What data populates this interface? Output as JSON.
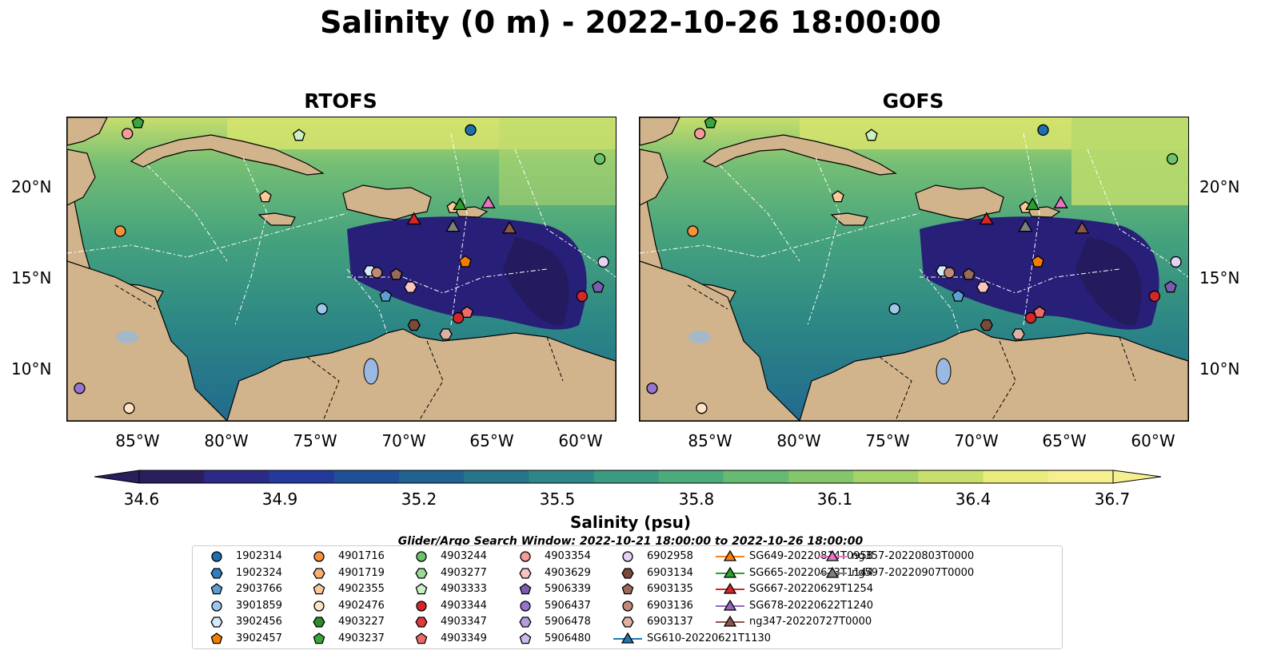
{
  "title": "Salinity (0 m) - 2022-10-26 18:00:00",
  "panels": [
    {
      "name": "RTOFS"
    },
    {
      "name": "GOFS"
    }
  ],
  "y_ticks": [
    "20°N",
    "15°N",
    "10°N"
  ],
  "x_ticks": [
    "85°W",
    "80°W",
    "75°W",
    "70°W",
    "65°W",
    "60°W"
  ],
  "colorbar": {
    "label": "Salinity (psu)",
    "ticks": [
      "34.6",
      "34.9",
      "35.2",
      "35.5",
      "35.8",
      "36.1",
      "36.4",
      "36.7"
    ],
    "min": 34.6,
    "max": 36.7,
    "colors": [
      "#2a1e5c",
      "#2b2a86",
      "#233a9c",
      "#1f4f96",
      "#206290",
      "#26758b",
      "#2e8787",
      "#3a9a82",
      "#4dab7b",
      "#66ba73",
      "#84c76b",
      "#a6d368",
      "#c8df6c",
      "#eaec7e",
      "#f5ef90"
    ]
  },
  "search_window": "Glider/Argo Search Window: 2022-10-21 18:00:00 to 2022-10-26 18:00:00",
  "legend": [
    {
      "label": "1902314",
      "marker": "circle",
      "color": "#1f6fae"
    },
    {
      "label": "1902324",
      "marker": "hexagon",
      "color": "#2f7fc0"
    },
    {
      "label": "2903766",
      "marker": "pentagon",
      "color": "#5b9fd4"
    },
    {
      "label": "3901859",
      "marker": "circle",
      "color": "#9ec8ea"
    },
    {
      "label": "3902456",
      "marker": "hexagon",
      "color": "#d6eaf8"
    },
    {
      "label": "3902457",
      "marker": "pentagon",
      "color": "#f57c00"
    },
    {
      "label": "4901716",
      "marker": "circle",
      "color": "#f5923a"
    },
    {
      "label": "4901719",
      "marker": "hexagon",
      "color": "#f8b074"
    },
    {
      "label": "4902355",
      "marker": "pentagon",
      "color": "#fac99a"
    },
    {
      "label": "4902476",
      "marker": "circle",
      "color": "#fde2c4"
    },
    {
      "label": "4903227",
      "marker": "hexagon",
      "color": "#2e8b2e"
    },
    {
      "label": "4903237",
      "marker": "pentagon",
      "color": "#3aa53a"
    },
    {
      "label": "4903244",
      "marker": "circle",
      "color": "#6cc36c"
    },
    {
      "label": "4903277",
      "marker": "hexagon",
      "color": "#9ad99a"
    },
    {
      "label": "4903333",
      "marker": "pentagon",
      "color": "#caf0c4"
    },
    {
      "label": "4903344",
      "marker": "circle",
      "color": "#d62728"
    },
    {
      "label": "4903347",
      "marker": "hexagon",
      "color": "#e0393a"
    },
    {
      "label": "4903349",
      "marker": "pentagon",
      "color": "#ec6a6a"
    },
    {
      "label": "4903354",
      "marker": "circle",
      "color": "#f49a9a"
    },
    {
      "label": "4903629",
      "marker": "hexagon",
      "color": "#f9c4c4"
    },
    {
      "label": "5906339",
      "marker": "pentagon",
      "color": "#7b5cb0"
    },
    {
      "label": "5906437",
      "marker": "circle",
      "color": "#9575cd"
    },
    {
      "label": "5906478",
      "marker": "hexagon",
      "color": "#b39ddb"
    },
    {
      "label": "5906480",
      "marker": "pentagon",
      "color": "#cdb8ec"
    },
    {
      "label": "6902958",
      "marker": "circle",
      "color": "#e3d3f7"
    },
    {
      "label": "6903134",
      "marker": "hexagon",
      "color": "#7a4a3a"
    },
    {
      "label": "6903135",
      "marker": "pentagon",
      "color": "#9a6a58"
    },
    {
      "label": "6903136",
      "marker": "circle",
      "color": "#c08a78"
    },
    {
      "label": "6903137",
      "marker": "hexagon",
      "color": "#ddb2a2"
    },
    {
      "label": "SG610-20220621T1130",
      "marker": "triangle",
      "color": "#1f77b4"
    },
    {
      "label": "SG649-20220814T0958",
      "marker": "triangle",
      "color": "#ff7f0e"
    },
    {
      "label": "SG665-20220623T1144",
      "marker": "triangle",
      "color": "#2ca02c"
    },
    {
      "label": "SG667-20220629T1254",
      "marker": "triangle",
      "color": "#d62728"
    },
    {
      "label": "SG678-20220622T1240",
      "marker": "triangle",
      "color": "#9467bd"
    },
    {
      "label": "ng347-20220727T0000",
      "marker": "triangle",
      "color": "#8c564b"
    },
    {
      "label": "ng357-20220803T0000",
      "marker": "triangle",
      "color": "#e377c2"
    },
    {
      "label": "ng597-20220907T0000",
      "marker": "triangle",
      "color": "#7f7f7f"
    }
  ],
  "observations": [
    {
      "id": "1902314",
      "lon": -66.2,
      "lat": 23.1
    },
    {
      "id": "4903244",
      "lon": -58.9,
      "lat": 21.5
    },
    {
      "id": "4903237",
      "lon": -85.0,
      "lat": 23.5
    },
    {
      "id": "4903354",
      "lon": -85.6,
      "lat": 22.9
    },
    {
      "id": "4903333",
      "lon": -75.9,
      "lat": 22.8
    },
    {
      "id": "4902355",
      "lon": -77.8,
      "lat": 19.4
    },
    {
      "id": "4901716",
      "lon": -86.0,
      "lat": 17.5
    },
    {
      "id": "4902355",
      "lon": -67.2,
      "lat": 18.8
    },
    {
      "id": "SG665-20220623T1144",
      "lon": -66.8,
      "lat": 18.9
    },
    {
      "id": "ng357-20220803T0000",
      "lon": -65.2,
      "lat": 19.0
    },
    {
      "id": "SG667-20220629T1254",
      "lon": -69.4,
      "lat": 18.1
    },
    {
      "id": "ng597-20220907T0000",
      "lon": -67.2,
      "lat": 17.7
    },
    {
      "id": "ng347-20220727T0000",
      "lon": -64.0,
      "lat": 17.6
    },
    {
      "id": "3902457",
      "lon": -66.5,
      "lat": 15.8
    },
    {
      "id": "6902958",
      "lon": -58.7,
      "lat": 15.8
    },
    {
      "id": "5906339",
      "lon": -59.0,
      "lat": 14.4
    },
    {
      "id": "4903344",
      "lon": -59.9,
      "lat": 13.9
    },
    {
      "id": "3901859",
      "lon": -74.6,
      "lat": 13.2
    },
    {
      "id": "3902456",
      "lon": -71.9,
      "lat": 15.3
    },
    {
      "id": "6903136",
      "lon": -71.5,
      "lat": 15.2
    },
    {
      "id": "6903135",
      "lon": -70.4,
      "lat": 15.1
    },
    {
      "id": "4903629",
      "lon": -69.6,
      "lat": 14.4
    },
    {
      "id": "2903766",
      "lon": -71.0,
      "lat": 13.9
    },
    {
      "id": "4903344",
      "lon": -66.9,
      "lat": 12.7
    },
    {
      "id": "4903349",
      "lon": -66.4,
      "lat": 13.0
    },
    {
      "id": "6903134",
      "lon": -69.4,
      "lat": 12.3
    },
    {
      "id": "6903137",
      "lon": -67.6,
      "lat": 11.8
    },
    {
      "id": "5906437",
      "lon": -88.3,
      "lat": 8.8
    },
    {
      "id": "4902476",
      "lon": -85.5,
      "lat": 7.7
    }
  ]
}
